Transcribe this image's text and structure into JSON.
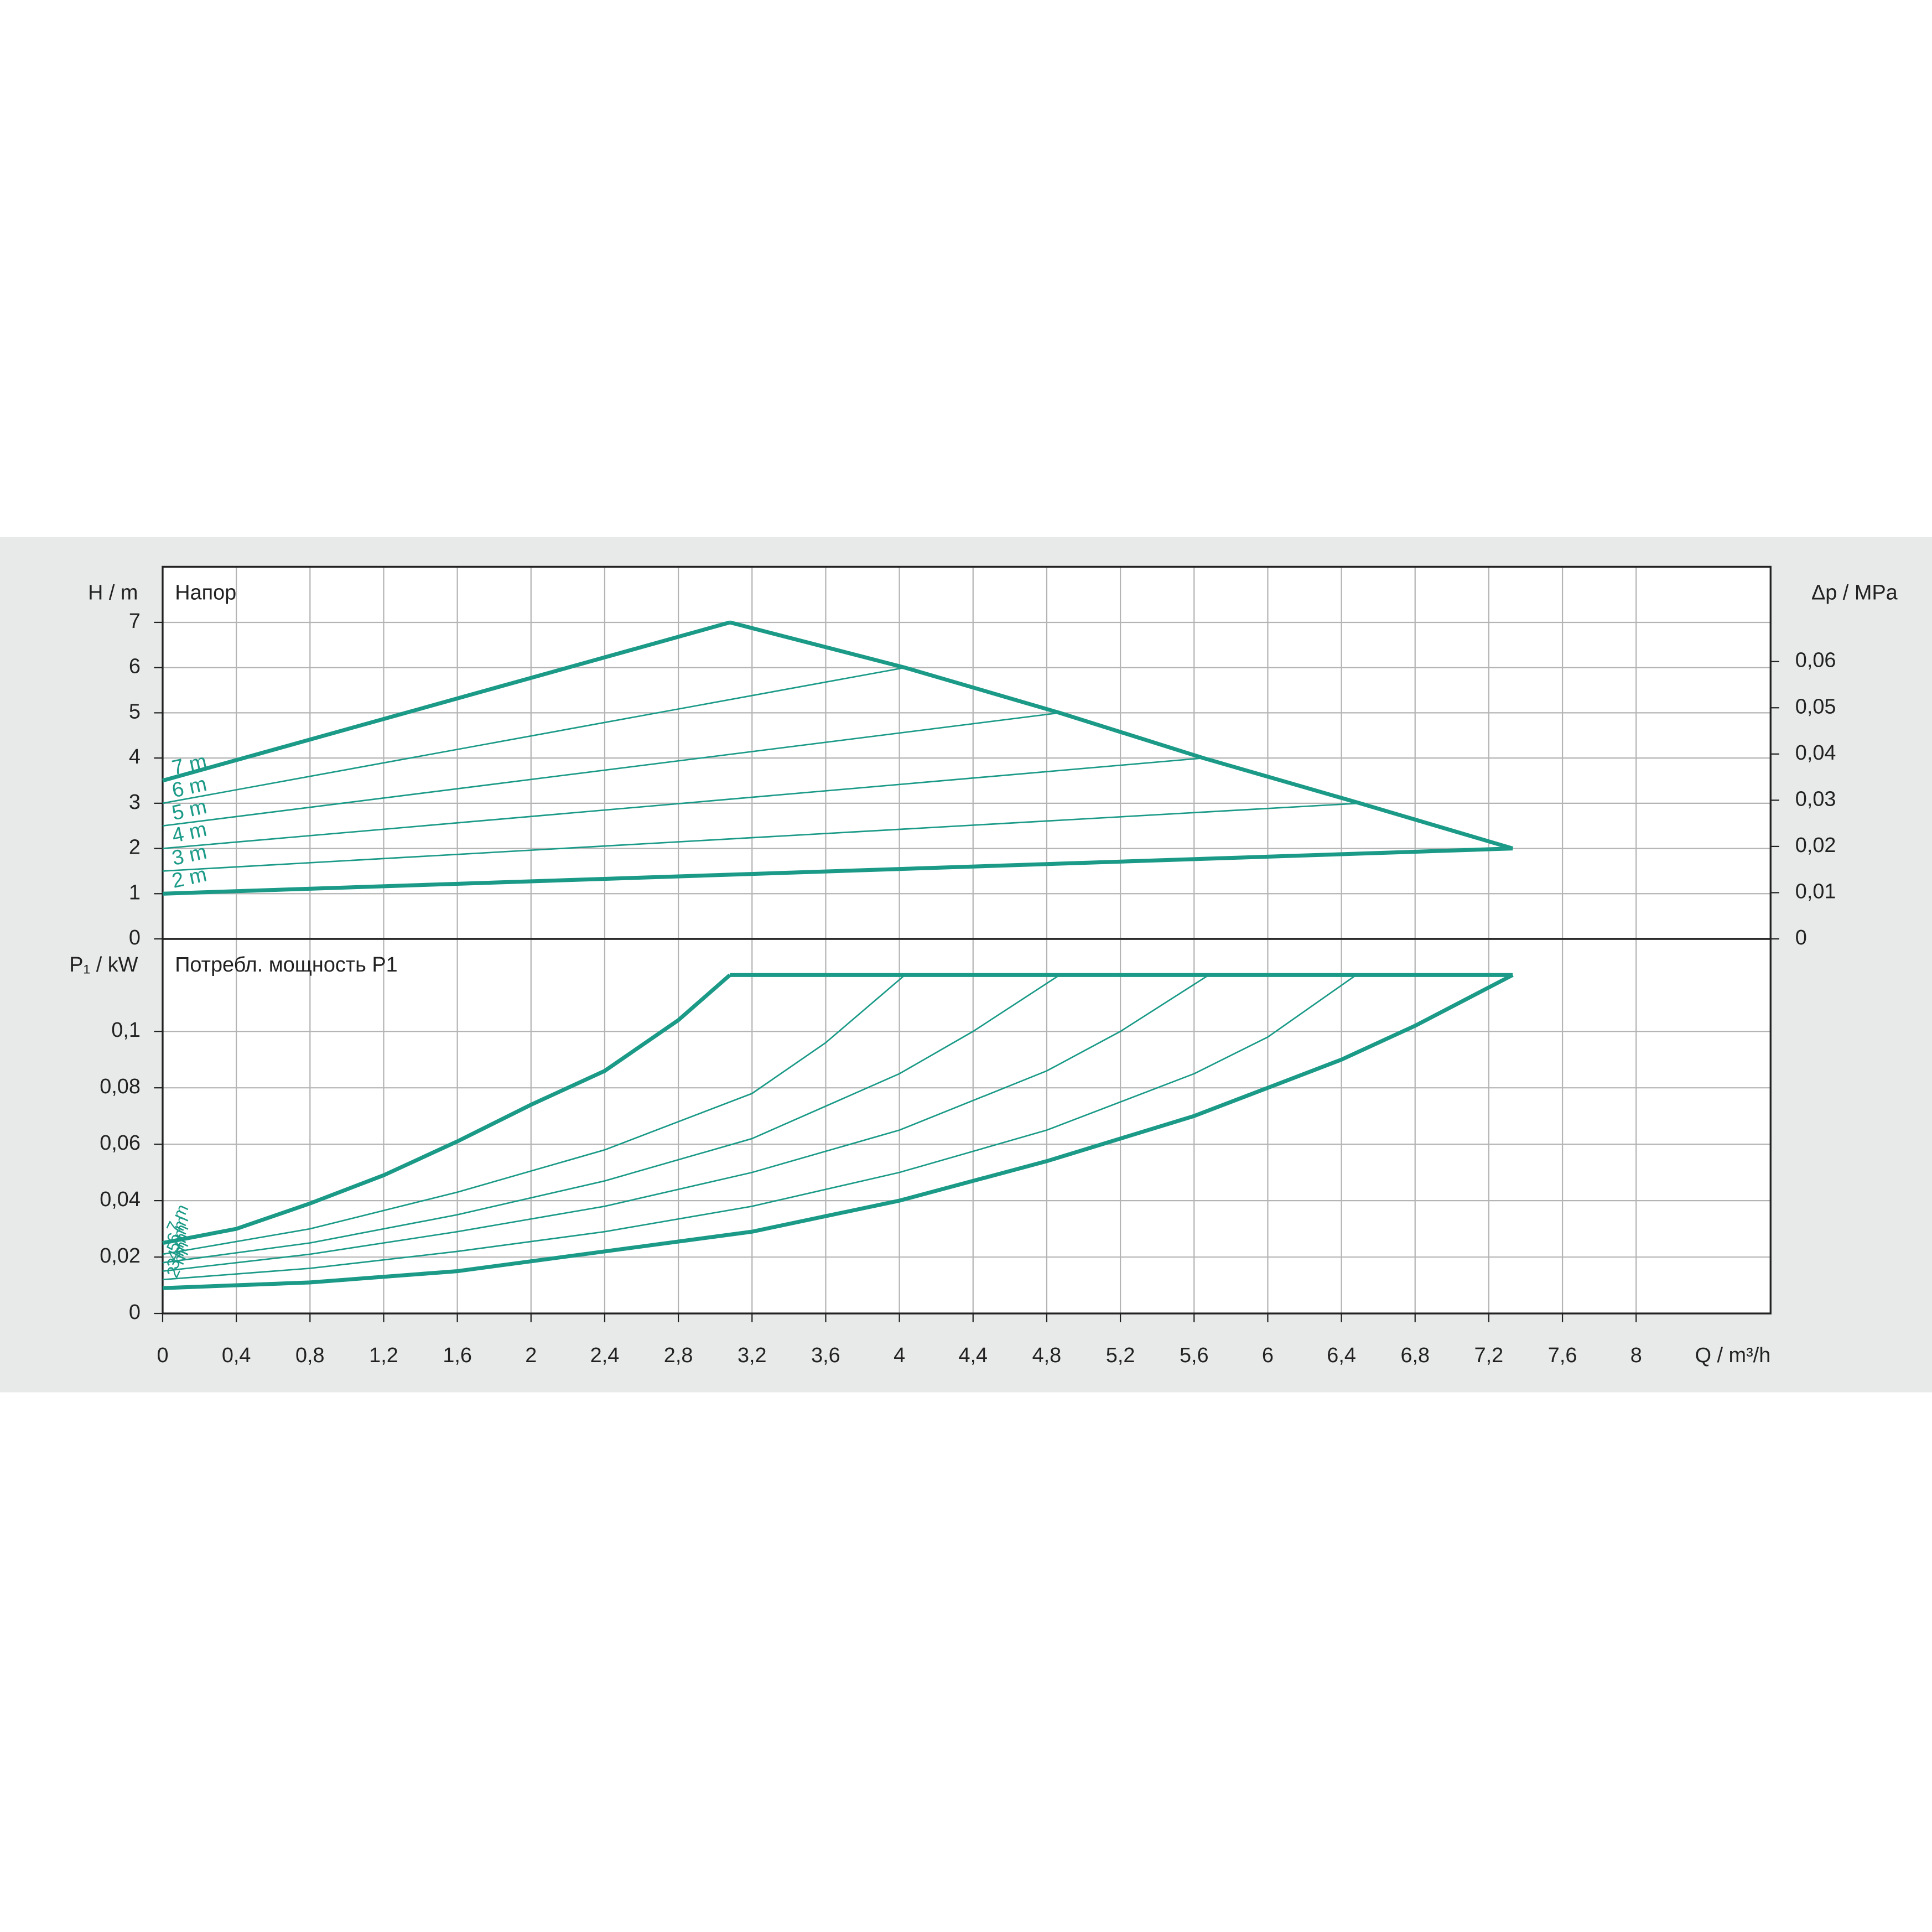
{
  "chart_data": [
    {
      "type": "line",
      "title": "Напор",
      "ylabel": "H / m",
      "y2label": "Δp / MPa",
      "xlim": [
        0,
        8.73
      ],
      "ylim": [
        0,
        8.23
      ],
      "y2lim": [
        0,
        0.0805
      ],
      "grid": true,
      "yticks": [
        0,
        1,
        2,
        3,
        4,
        5,
        6,
        7
      ],
      "y2ticks": [
        0,
        {
          "value": 0.01,
          "label": "0,01"
        },
        {
          "value": 0.02,
          "label": "0,02"
        },
        {
          "value": 0.03,
          "label": "0,03"
        },
        {
          "value": 0.04,
          "label": "0,04"
        },
        {
          "value": 0.05,
          "label": "0,05"
        },
        {
          "value": 0.06,
          "label": "0,06"
        }
      ],
      "series": [
        {
          "name": "7 m",
          "color": "#1a9a87",
          "x": [
            0,
            3.08
          ],
          "values": [
            3.5,
            7.0
          ]
        },
        {
          "name": "6 m",
          "color": "#1a9a87",
          "x": [
            0,
            4.03
          ],
          "values": [
            3.0,
            6.0
          ]
        },
        {
          "name": "5 m",
          "color": "#1a9a87",
          "x": [
            0,
            4.87
          ],
          "values": [
            2.5,
            5.0
          ]
        },
        {
          "name": "4 m",
          "color": "#1a9a87",
          "x": [
            0,
            5.65
          ],
          "values": [
            2.0,
            4.0
          ]
        },
        {
          "name": "3 m",
          "color": "#1a9a87",
          "x": [
            0,
            6.5
          ],
          "values": [
            1.5,
            3.0
          ]
        },
        {
          "name": "2 m",
          "color": "#1a9a87",
          "x": [
            0,
            7.33
          ],
          "values": [
            1.0,
            2.0
          ]
        },
        {
          "color": "#1a9a87",
          "x": [
            3.08,
            4.03,
            4.87,
            5.65,
            6.5,
            7.33
          ],
          "values": [
            7,
            6,
            5,
            4,
            3,
            2
          ]
        }
      ]
    },
    {
      "type": "line",
      "title": "Потребл. мощность P1",
      "ylabel": "P₁ / kW",
      "xlabel": "Q / m³/h",
      "xlim": [
        0,
        8.73
      ],
      "ylim": [
        0,
        0.1328
      ],
      "grid": true,
      "yticks": [
        0,
        {
          "value": 0.02,
          "label": "0,02"
        },
        {
          "value": 0.04,
          "label": "0,04"
        },
        {
          "value": 0.06,
          "label": "0,06"
        },
        {
          "value": 0.08,
          "label": "0,08"
        },
        {
          "value": 0.1,
          "label": "0,1"
        }
      ],
      "xticks": [
        0,
        {
          "value": 0.4,
          "label": "0,4"
        },
        {
          "value": 0.8,
          "label": "0,8"
        },
        {
          "value": 1.2,
          "label": "1,2"
        },
        {
          "value": 1.6,
          "label": "1,6"
        },
        2,
        {
          "value": 2.4,
          "label": "2,4"
        },
        {
          "value": 2.8,
          "label": "2,8"
        },
        {
          "value": 3.2,
          "label": "3,2"
        },
        {
          "value": 3.6,
          "label": "3,6"
        },
        4,
        {
          "value": 4.4,
          "label": "4,4"
        },
        {
          "value": 4.8,
          "label": "4,8"
        },
        {
          "value": 5.2,
          "label": "5,2"
        },
        {
          "value": 5.6,
          "label": "5,6"
        },
        6,
        {
          "value": 6.4,
          "label": "6,4"
        },
        {
          "value": 6.8,
          "label": "6,8"
        },
        {
          "value": 7.2,
          "label": "7,2"
        },
        {
          "value": 7.6,
          "label": "7,6"
        },
        8
      ],
      "series": [
        {
          "name": "7 m",
          "color": "#1a9a87",
          "x": [
            0,
            0.4,
            0.8,
            1.2,
            1.6,
            2.0,
            2.4,
            2.8,
            3.08
          ],
          "values": [
            0.025,
            0.03,
            0.039,
            0.049,
            0.061,
            0.074,
            0.086,
            0.104,
            0.12
          ]
        },
        {
          "name": "6 m",
          "color": "#1a9a87",
          "x": [
            0,
            0.8,
            1.6,
            2.4,
            3.2,
            3.6,
            4.03
          ],
          "values": [
            0.021,
            0.03,
            0.043,
            0.058,
            0.078,
            0.096,
            0.12
          ]
        },
        {
          "name": "5 m",
          "color": "#1a9a87",
          "x": [
            0,
            0.8,
            1.6,
            2.4,
            3.2,
            4.0,
            4.4,
            4.87
          ],
          "values": [
            0.018,
            0.025,
            0.035,
            0.047,
            0.062,
            0.085,
            0.1,
            0.12
          ]
        },
        {
          "name": "4 m",
          "color": "#1a9a87",
          "x": [
            0,
            0.8,
            1.6,
            2.4,
            3.2,
            4.0,
            4.8,
            5.2,
            5.68
          ],
          "values": [
            0.015,
            0.021,
            0.029,
            0.038,
            0.05,
            0.065,
            0.086,
            0.1,
            0.12
          ]
        },
        {
          "name": "3 m",
          "color": "#1a9a87",
          "x": [
            0,
            0.8,
            1.6,
            2.4,
            3.2,
            4.0,
            4.8,
            5.6,
            6.0,
            6.48
          ],
          "values": [
            0.012,
            0.016,
            0.022,
            0.029,
            0.038,
            0.05,
            0.065,
            0.085,
            0.098,
            0.12
          ]
        },
        {
          "name": "2 m",
          "color": "#1a9a87",
          "x": [
            0,
            0.8,
            1.6,
            2.4,
            3.2,
            4.0,
            4.8,
            5.6,
            6.4,
            6.8,
            7.33
          ],
          "values": [
            0.009,
            0.011,
            0.015,
            0.022,
            0.029,
            0.04,
            0.054,
            0.07,
            0.09,
            0.102,
            0.12
          ]
        },
        {
          "color": "#1a9a87",
          "x": [
            3.08,
            7.33
          ],
          "values": [
            0.12,
            0.12
          ]
        }
      ]
    }
  ]
}
